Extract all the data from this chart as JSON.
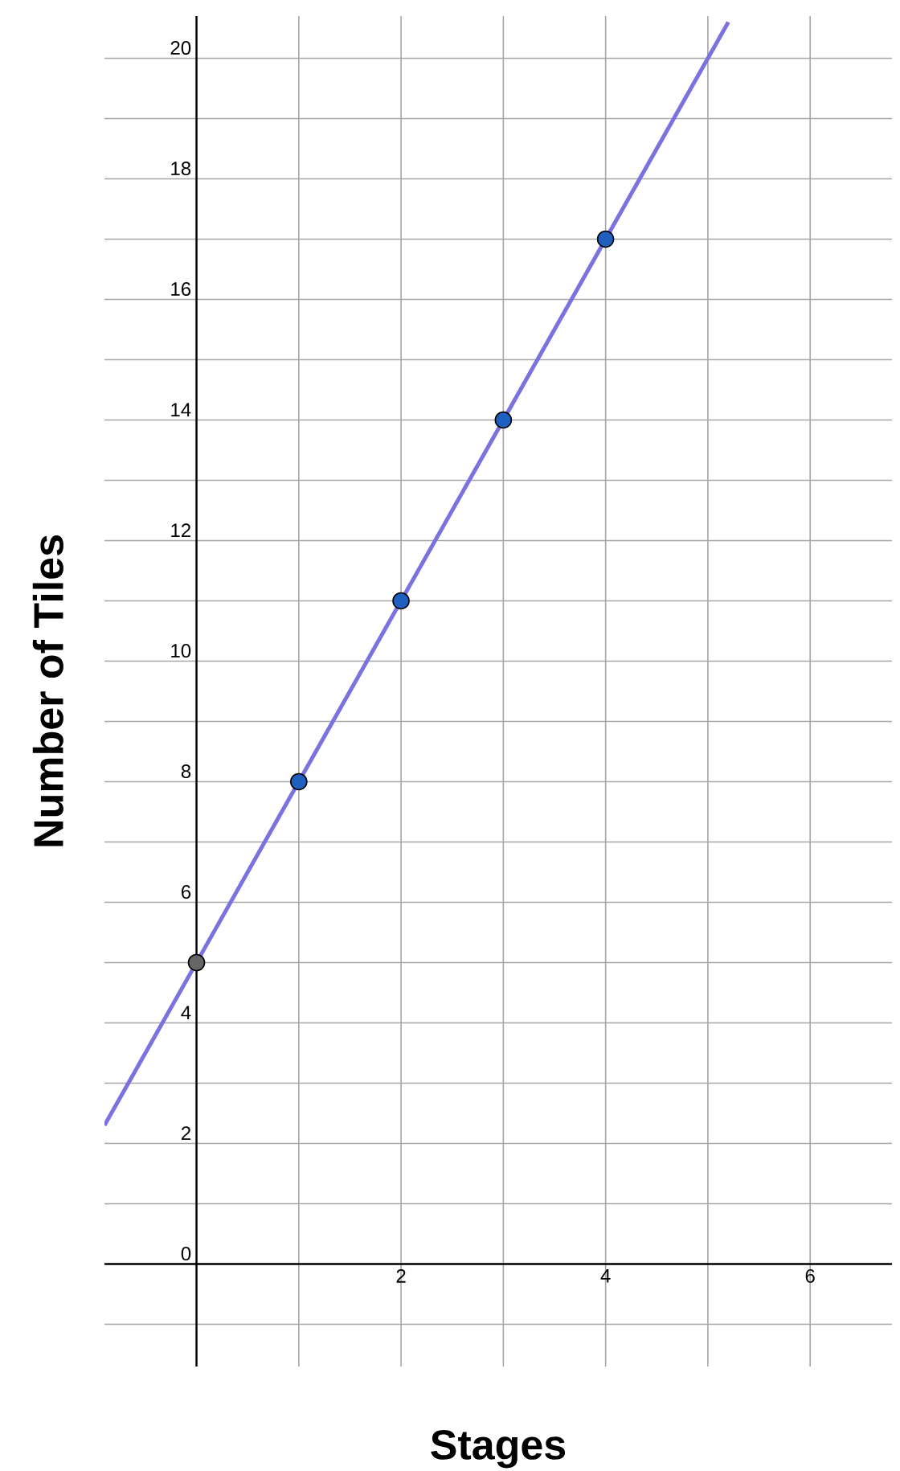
{
  "chart_data": {
    "type": "scatter",
    "xlabel": "Stages",
    "ylabel": "Number of Tiles",
    "xlim": [
      -0.9,
      6.8
    ],
    "ylim": [
      -1.7,
      20.7
    ],
    "xticks": [
      {
        "value": 0,
        "label": null
      },
      {
        "value": 1,
        "label": null
      },
      2,
      {
        "value": 3,
        "label": null
      },
      4,
      {
        "value": 5,
        "label": null
      },
      6
    ],
    "yticks": [
      {
        "value": -1,
        "label": null
      },
      0,
      {
        "value": 1,
        "label": null
      },
      2,
      {
        "value": 3,
        "label": null
      },
      4,
      {
        "value": 5,
        "label": null
      },
      6,
      {
        "value": 7,
        "label": null
      },
      8,
      {
        "value": 9,
        "label": null
      },
      10,
      {
        "value": 11,
        "label": null
      },
      12,
      {
        "value": 13,
        "label": null
      },
      14,
      {
        "value": 15,
        "label": null
      },
      16,
      {
        "value": 17,
        "label": null
      },
      18,
      {
        "value": 19,
        "label": null
      },
      20
    ],
    "grid": true,
    "series": [
      {
        "type": "line",
        "x": [
          -0.9,
          5.2
        ],
        "values": [
          2.3,
          20.6
        ],
        "color": "#7b72e0"
      },
      {
        "x": [
          0,
          1,
          2,
          3,
          4
        ],
        "values": [
          5,
          8,
          11,
          14,
          17
        ],
        "colors": [
          "#666666",
          "#1f5fbf",
          "#1f5fbf",
          "#1f5fbf",
          "#1f5fbf"
        ]
      }
    ]
  }
}
